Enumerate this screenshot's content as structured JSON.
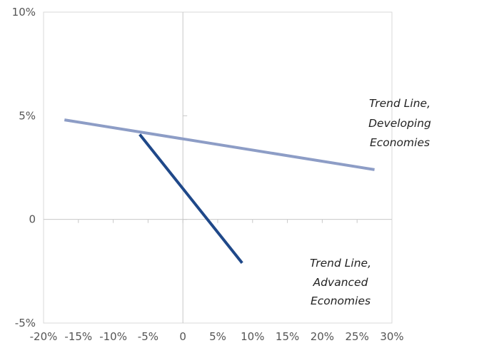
{
  "chart_data": {
    "type": "line",
    "title": "",
    "xlabel": "",
    "ylabel": "",
    "xlim": [
      -20,
      30
    ],
    "ylim": [
      -5,
      10
    ],
    "x_ticks": [
      -20,
      -15,
      -10,
      -5,
      0,
      5,
      10,
      15,
      20,
      25,
      30
    ],
    "x_tick_labels": [
      "-20%",
      "-15%",
      "-10%",
      "-5%",
      "0",
      "5%",
      "10%",
      "15%",
      "20%",
      "25%",
      "30%"
    ],
    "y_ticks": [
      -5,
      0,
      5,
      10
    ],
    "y_tick_labels": [
      "-5%",
      "0",
      "5%",
      "10%"
    ],
    "grid": false,
    "legend": "none",
    "series": [
      {
        "color": "#8d9dc6",
        "x": [
          -17,
          27.5
        ],
        "y": [
          4.8,
          2.4
        ]
      },
      {
        "color": "#1f4889",
        "x": [
          -6.2,
          8.5
        ],
        "y": [
          4.1,
          -2.1
        ]
      }
    ],
    "annotations": [
      {
        "lines": [
          "Trend Line,",
          "Developing",
          "Economies"
        ]
      },
      {
        "lines": [
          "Trend Line,",
          "Advanced",
          "Economies"
        ]
      }
    ]
  }
}
